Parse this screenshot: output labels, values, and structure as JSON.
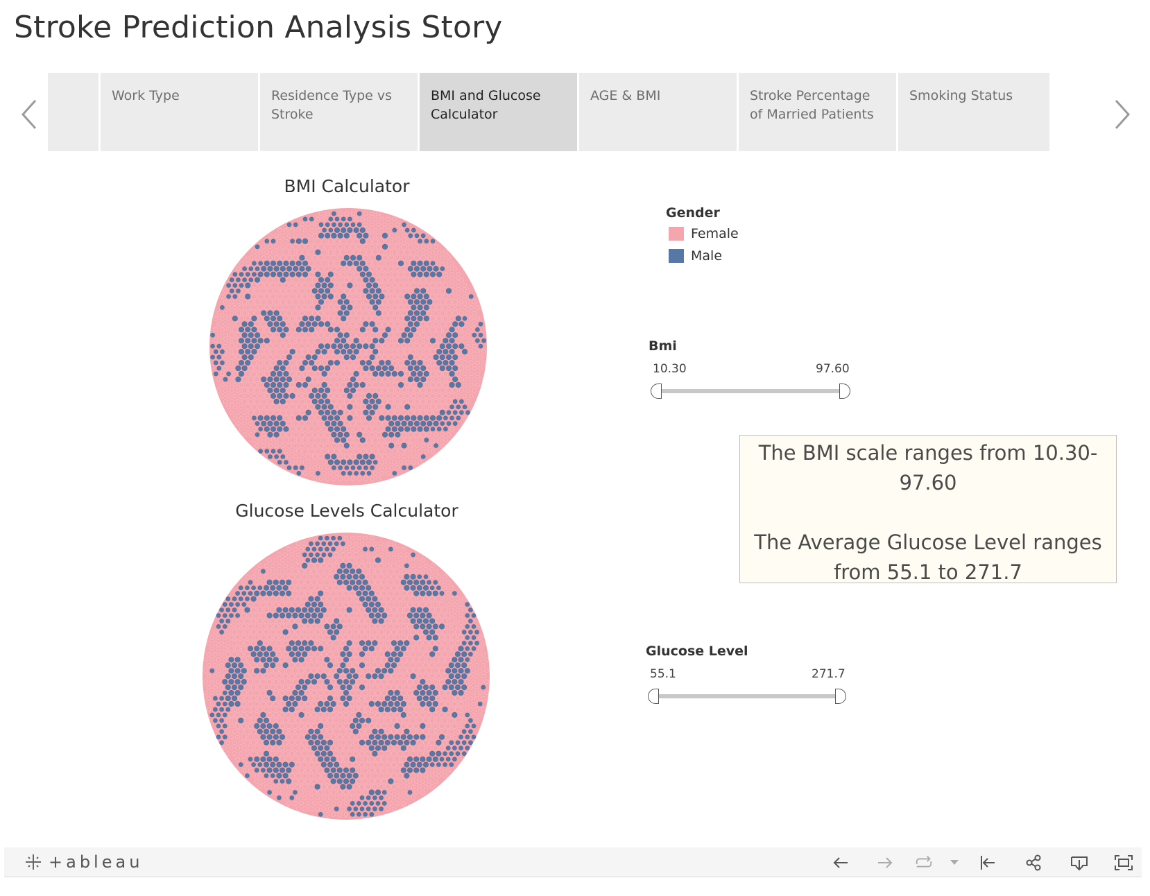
{
  "story": {
    "title": "Stroke Prediction Analysis Story",
    "tabs": [
      {
        "label": ""
      },
      {
        "label": "Work Type"
      },
      {
        "label": "Residence Type vs Stroke"
      },
      {
        "label": "BMI and Glucose Calculator",
        "active": true
      },
      {
        "label": "AGE & BMI"
      },
      {
        "label": "Stroke Percentage of Married Patients"
      },
      {
        "label": "Smoking Status"
      }
    ]
  },
  "charts": {
    "bmi_title": "BMI Calculator",
    "glucose_title": "Glucose Levels Calculator"
  },
  "chart_data": [
    {
      "type": "packed-bubble",
      "title": "BMI Calculator",
      "color_by": "Gender",
      "categories": [
        "Female",
        "Male"
      ],
      "colors": [
        "#f4a5ae",
        "#5777a4"
      ]
    },
    {
      "type": "packed-bubble",
      "title": "Glucose Levels Calculator",
      "color_by": "Gender",
      "categories": [
        "Female",
        "Male"
      ],
      "colors": [
        "#f4a5ae",
        "#5777a4"
      ]
    }
  ],
  "legend": {
    "title": "Gender",
    "items": [
      {
        "label": "Female",
        "color": "#f4a5ae"
      },
      {
        "label": "Male",
        "color": "#5777a4"
      }
    ]
  },
  "filters": {
    "bmi": {
      "title": "Bmi",
      "min": "10.30",
      "max": "97.60"
    },
    "glucose": {
      "title": "Glucose Level",
      "min": "55.1",
      "max": "271.7"
    }
  },
  "textbox": {
    "line1": "The BMI scale ranges from 10.30-97.60",
    "line2": "The Average Glucose Level ranges from 55.1 to 271.7"
  },
  "toolbar": {
    "logo_text": "+ableau",
    "icons": [
      "undo-icon",
      "redo-icon",
      "revert-icon",
      "dropdown-icon",
      "reset-icon",
      "share-icon",
      "download-icon",
      "fullscreen-icon"
    ]
  }
}
